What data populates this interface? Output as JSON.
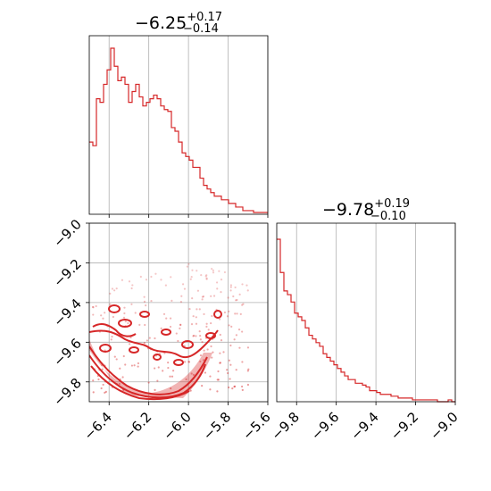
{
  "chart_data": [
    {
      "type": "histogram",
      "panel": "top-left",
      "title_value": "−6.25",
      "title_plus": "+0.17",
      "title_minus": "−0.14",
      "xlim": [
        -6.5,
        -5.6
      ],
      "xticks": [
        -6.4,
        -6.2,
        -6.0,
        -5.8,
        -5.6
      ],
      "grid": true,
      "color": "#d62728",
      "bin_width": 0.018,
      "bin_start": -6.5,
      "counts": [
        40,
        38,
        64,
        62,
        72,
        80,
        92,
        82,
        74,
        76,
        72,
        62,
        68,
        72,
        65,
        60,
        62,
        64,
        66,
        64,
        60,
        58,
        57,
        48,
        46,
        40,
        34,
        32,
        30,
        26,
        26,
        20,
        16,
        14,
        12,
        10,
        10,
        8,
        8,
        6,
        6,
        4,
        4,
        2,
        2,
        2,
        1,
        1,
        1,
        1
      ]
    },
    {
      "type": "scatter-contour",
      "panel": "bottom-left",
      "xlim": [
        -6.5,
        -5.6
      ],
      "ylim": [
        -9.9,
        -9.0
      ],
      "xticks": [
        -6.4,
        -6.2,
        -6.0,
        -5.8,
        -5.6
      ],
      "xtick_labels": [
        "−6.4",
        "−6.2",
        "−6.0",
        "−5.8",
        "−5.6"
      ],
      "yticks": [
        -9.0,
        -9.2,
        -9.4,
        -9.6,
        -9.8
      ],
      "ytick_labels": [
        "−9.0",
        "−9.2",
        "−9.4",
        "−9.6",
        "−9.8"
      ],
      "grid": true,
      "color": "#d62728"
    },
    {
      "type": "histogram",
      "panel": "bottom-right",
      "title_value": "−9.78",
      "title_plus": "+0.19",
      "title_minus": "−0.10",
      "xlim": [
        -9.9,
        -9.0
      ],
      "xticks": [
        -9.8,
        -9.6,
        -9.4,
        -9.2,
        -9.0
      ],
      "xtick_labels": [
        "−9.8",
        "−9.6",
        "−9.4",
        "−9.2",
        "−9.0"
      ],
      "grid": true,
      "color": "#d62728",
      "bin_width": 0.018,
      "bin_start": -9.9,
      "counts": [
        88,
        70,
        60,
        58,
        54,
        48,
        46,
        44,
        40,
        36,
        34,
        32,
        30,
        26,
        24,
        22,
        20,
        18,
        16,
        14,
        12,
        12,
        10,
        10,
        9,
        8,
        6,
        6,
        5,
        4,
        4,
        4,
        3,
        3,
        2,
        2,
        2,
        2,
        1,
        1,
        1,
        1,
        1,
        1,
        1,
        0,
        0,
        0,
        1,
        0
      ]
    }
  ]
}
